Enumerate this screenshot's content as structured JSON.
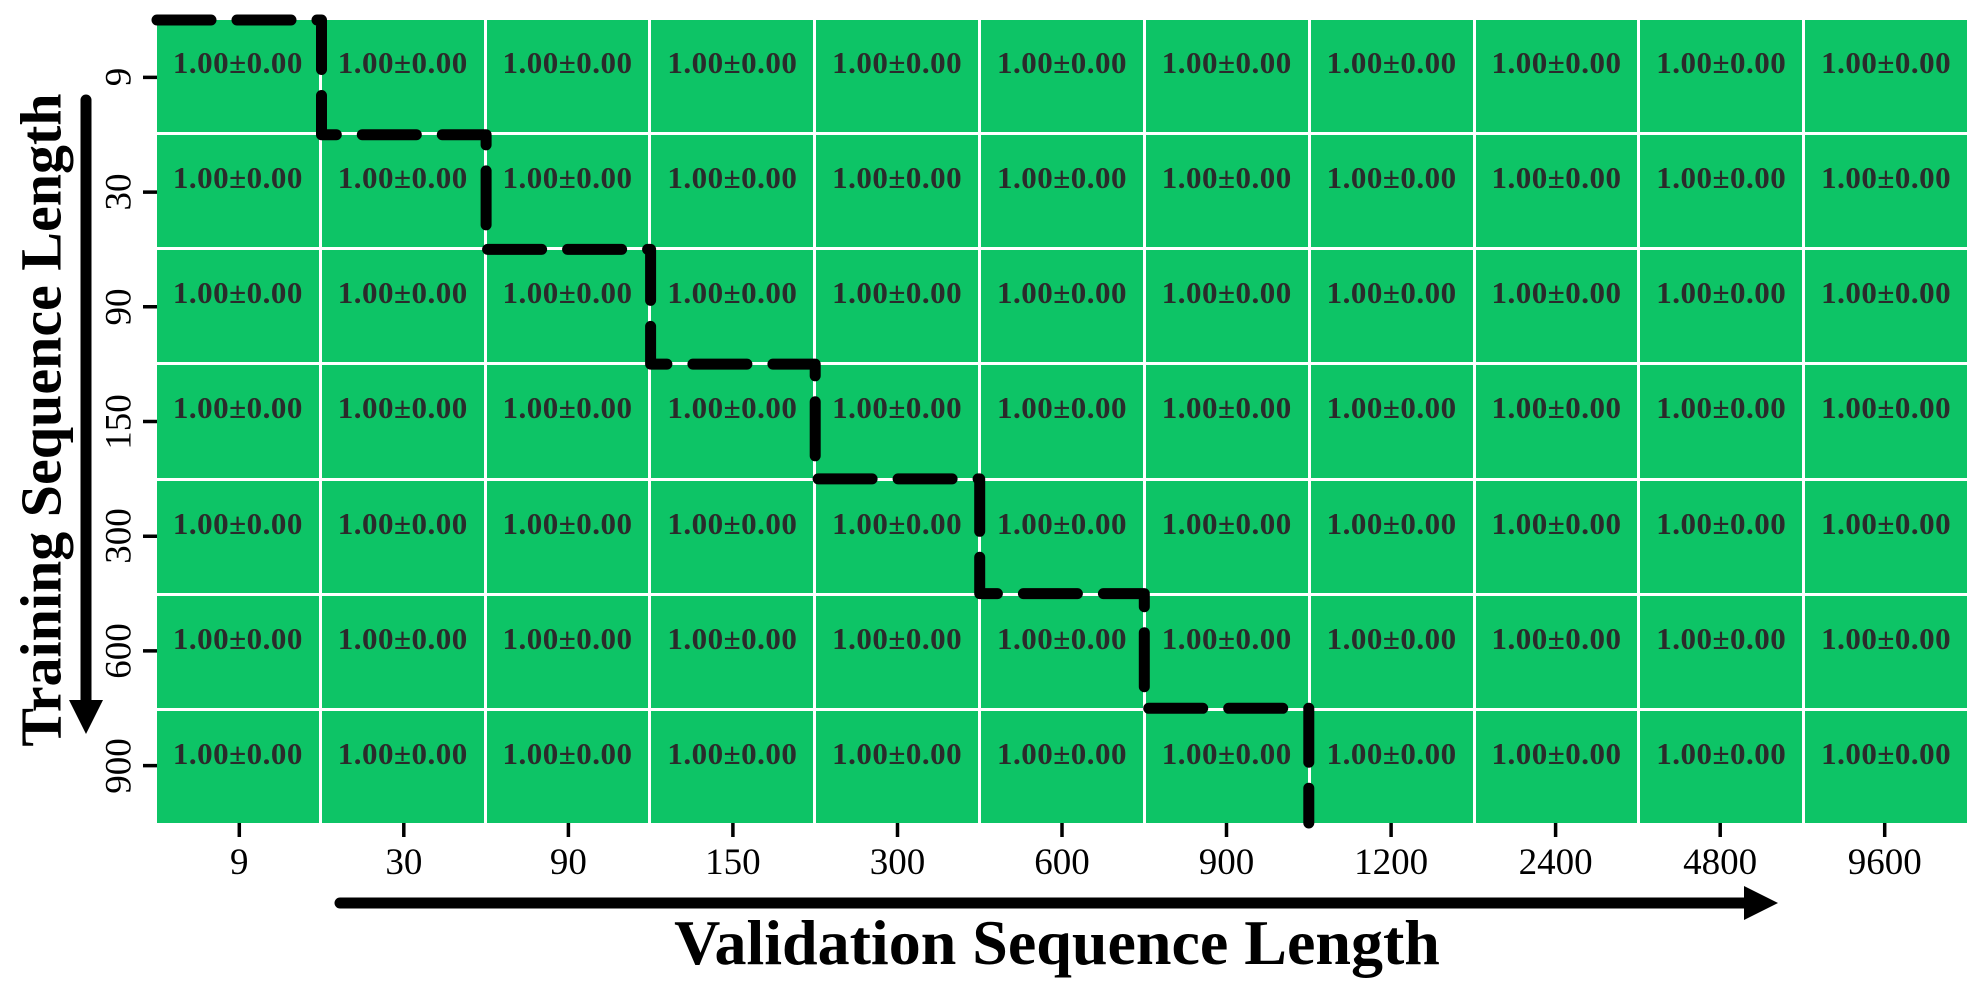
{
  "figure": {
    "background_color": "#ffffff",
    "cell_color": "#0dc466",
    "cell_text_color": "#2b2b2b",
    "gridline_color": "#ffffff",
    "line_color": "#000000"
  },
  "chart_data": {
    "type": "heatmap",
    "title": "",
    "xlabel": "Validation Sequence Length",
    "ylabel": "Training Sequence Length",
    "x_categories": [
      "9",
      "30",
      "90",
      "150",
      "300",
      "600",
      "900",
      "1200",
      "2400",
      "4800",
      "9600"
    ],
    "y_categories": [
      "9",
      "30",
      "90",
      "150",
      "300",
      "600",
      "900"
    ],
    "cell_label": "1.00±0.00",
    "values": [
      [
        1.0,
        1.0,
        1.0,
        1.0,
        1.0,
        1.0,
        1.0,
        1.0,
        1.0,
        1.0,
        1.0
      ],
      [
        1.0,
        1.0,
        1.0,
        1.0,
        1.0,
        1.0,
        1.0,
        1.0,
        1.0,
        1.0,
        1.0
      ],
      [
        1.0,
        1.0,
        1.0,
        1.0,
        1.0,
        1.0,
        1.0,
        1.0,
        1.0,
        1.0,
        1.0
      ],
      [
        1.0,
        1.0,
        1.0,
        1.0,
        1.0,
        1.0,
        1.0,
        1.0,
        1.0,
        1.0,
        1.0
      ],
      [
        1.0,
        1.0,
        1.0,
        1.0,
        1.0,
        1.0,
        1.0,
        1.0,
        1.0,
        1.0,
        1.0
      ],
      [
        1.0,
        1.0,
        1.0,
        1.0,
        1.0,
        1.0,
        1.0,
        1.0,
        1.0,
        1.0,
        1.0
      ],
      [
        1.0,
        1.0,
        1.0,
        1.0,
        1.0,
        1.0,
        1.0,
        1.0,
        1.0,
        1.0,
        1.0
      ]
    ],
    "stds": [
      [
        0.0,
        0.0,
        0.0,
        0.0,
        0.0,
        0.0,
        0.0,
        0.0,
        0.0,
        0.0,
        0.0
      ],
      [
        0.0,
        0.0,
        0.0,
        0.0,
        0.0,
        0.0,
        0.0,
        0.0,
        0.0,
        0.0,
        0.0
      ],
      [
        0.0,
        0.0,
        0.0,
        0.0,
        0.0,
        0.0,
        0.0,
        0.0,
        0.0,
        0.0,
        0.0
      ],
      [
        0.0,
        0.0,
        0.0,
        0.0,
        0.0,
        0.0,
        0.0,
        0.0,
        0.0,
        0.0,
        0.0
      ],
      [
        0.0,
        0.0,
        0.0,
        0.0,
        0.0,
        0.0,
        0.0,
        0.0,
        0.0,
        0.0,
        0.0
      ],
      [
        0.0,
        0.0,
        0.0,
        0.0,
        0.0,
        0.0,
        0.0,
        0.0,
        0.0,
        0.0,
        0.0
      ],
      [
        0.0,
        0.0,
        0.0,
        0.0,
        0.0,
        0.0,
        0.0,
        0.0,
        0.0,
        0.0,
        0.0
      ]
    ],
    "value_format": "mean±std (2 decimals)",
    "annotations": {
      "diagonal_staircase": "dashed black step line tracing the boundary where training sequence length equals validation sequence length, from top-left to bottom of the 900 column"
    },
    "layout": {
      "grid_on": true,
      "legend": "none",
      "x_axis_arrow": "thick black arrow pointing right under x tick labels",
      "y_axis_arrow": "thick black arrow pointing down left of y tick labels"
    }
  }
}
